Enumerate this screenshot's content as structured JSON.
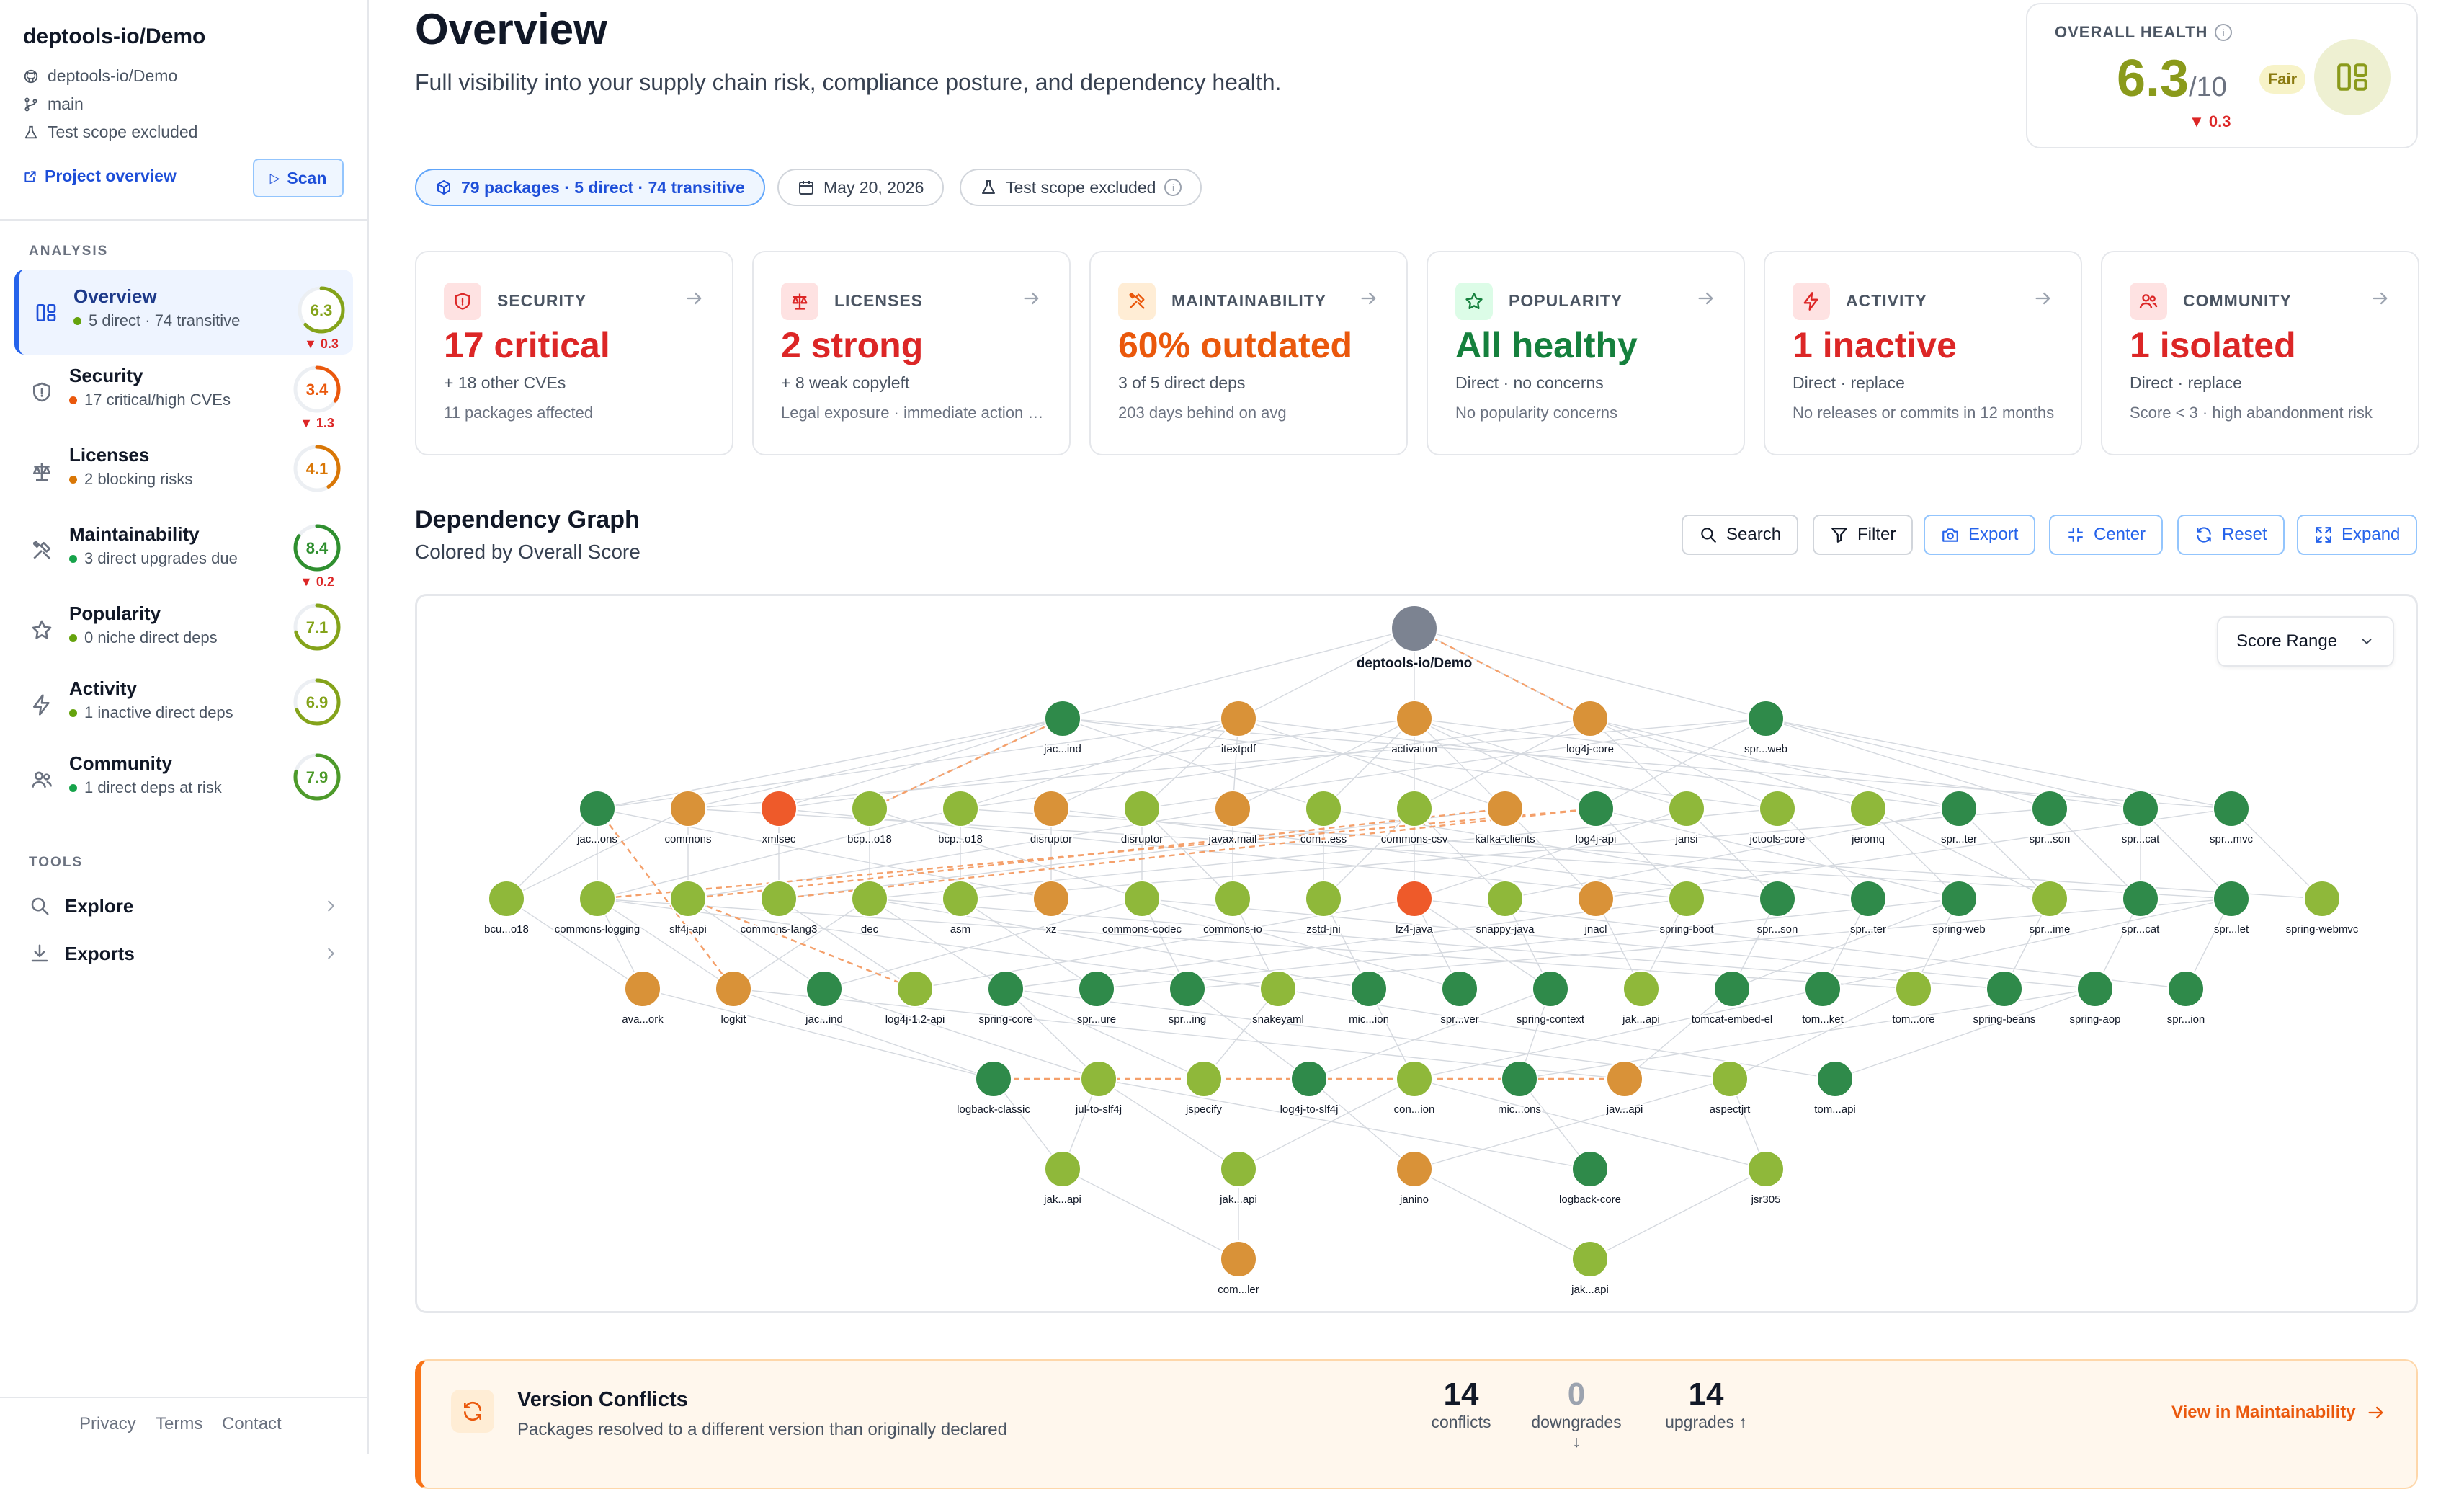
{
  "sidebar": {
    "project_name": "deptools-io/Demo",
    "repo": "deptools-io/Demo",
    "branch": "main",
    "scope": "Test scope excluded",
    "project_link": "Project overview",
    "scan_label": "Scan",
    "analysis_label": "ANALYSIS",
    "tools_label": "TOOLS",
    "items": [
      {
        "title": "Overview",
        "sub": "5 direct · 74 transitive",
        "score": "6.3",
        "score_value": 6.3,
        "delta": "▼ 0.3",
        "dot": "#65a30d",
        "ring": "#84a31a",
        "icon": "dashboard-icon"
      },
      {
        "title": "Security",
        "sub": "17 critical/high CVEs",
        "score": "3.4",
        "score_value": 3.4,
        "delta": "▼ 1.3",
        "dot": "#ea580c",
        "ring": "#ea580c",
        "icon": "shield-icon"
      },
      {
        "title": "Licenses",
        "sub": "2 blocking risks",
        "score": "4.1",
        "score_value": 4.1,
        "delta": "",
        "dot": "#d97706",
        "ring": "#d97706",
        "icon": "scale-icon"
      },
      {
        "title": "Maintainability",
        "sub": "3 direct upgrades due",
        "score": "8.4",
        "score_value": 8.4,
        "delta": "▼ 0.2",
        "dot": "#16a34a",
        "ring": "#2f8f2f",
        "icon": "tools-icon"
      },
      {
        "title": "Popularity",
        "sub": "0 niche direct deps",
        "score": "7.1",
        "score_value": 7.1,
        "delta": "",
        "dot": "#65a30d",
        "ring": "#84a31a",
        "icon": "star-icon"
      },
      {
        "title": "Activity",
        "sub": "1 inactive direct deps",
        "score": "6.9",
        "score_value": 6.9,
        "delta": "",
        "dot": "#65a30d",
        "ring": "#84a31a",
        "icon": "bolt-icon"
      },
      {
        "title": "Community",
        "sub": "1 direct deps at risk",
        "score": "7.9",
        "score_value": 7.9,
        "delta": "",
        "dot": "#16a34a",
        "ring": "#4d9a2a",
        "icon": "users-icon"
      }
    ],
    "tools": [
      {
        "label": "Explore",
        "icon": "search-icon"
      },
      {
        "label": "Exports",
        "icon": "download-icon"
      }
    ],
    "footer": [
      "Privacy",
      "Terms",
      "Contact"
    ]
  },
  "header": {
    "title": "Overview",
    "subtitle": "Full visibility into your supply chain risk, compliance posture, and dependency health."
  },
  "health": {
    "label": "OVERALL HEALTH",
    "score": "6.3",
    "out_of": "/10",
    "badge": "Fair",
    "delta": "▼ 0.3"
  },
  "pills": {
    "packages": "79 packages · 5 direct · 74 transitive",
    "date": "May 20, 2026",
    "scope": "Test scope excluded"
  },
  "metrics": [
    {
      "label": "SECURITY",
      "value": "17 critical",
      "sub": "+ 18 other CVEs",
      "foot": "11 packages affected",
      "color": "#dc2626",
      "icon_bg": "#fee2e2",
      "icon": "shield-icon"
    },
    {
      "label": "LICENSES",
      "value": "2 strong",
      "sub": "+ 8 weak copyleft",
      "foot": "Legal exposure · immediate action required",
      "color": "#dc2626",
      "icon_bg": "#fee2e2",
      "icon": "scale-icon"
    },
    {
      "label": "MAINTAINABILITY",
      "value": "60% outdated",
      "sub": "3 of 5 direct deps",
      "foot": "203 days behind on avg",
      "color": "#ea580c",
      "icon_bg": "#ffedd5",
      "icon": "tools-icon"
    },
    {
      "label": "POPULARITY",
      "value": "All healthy",
      "sub": "Direct · no concerns",
      "foot": "No popularity concerns",
      "color": "#15803d",
      "icon_bg": "#dcfce7",
      "icon": "star-icon"
    },
    {
      "label": "ACTIVITY",
      "value": "1 inactive",
      "sub": "Direct · replace",
      "foot": "No releases or commits in 12 months",
      "color": "#dc2626",
      "icon_bg": "#fee2e2",
      "icon": "bolt-icon"
    },
    {
      "label": "COMMUNITY",
      "value": "1 isolated",
      "sub": "Direct · replace",
      "foot": "Score < 3 · high abandonment risk",
      "color": "#dc2626",
      "icon_bg": "#fee2e2",
      "icon": "users-icon"
    }
  ],
  "graph": {
    "title": "Dependency Graph",
    "subtitle": "Colored by Overall Score",
    "toolbar": [
      {
        "label": "Search",
        "icon": "search-icon",
        "style": "plain"
      },
      {
        "label": "Filter",
        "icon": "filter-icon",
        "style": "plain"
      },
      {
        "label": "Export",
        "icon": "camera-icon",
        "style": "blue"
      },
      {
        "label": "Center",
        "icon": "center-icon",
        "style": "blue"
      },
      {
        "label": "Reset",
        "icon": "refresh-icon",
        "style": "blue"
      },
      {
        "label": "Expand",
        "icon": "expand-icon",
        "style": "blue"
      }
    ],
    "score_range_label": "Score Range",
    "root": {
      "label": "deptools-io/Demo",
      "color": "#7c8391"
    },
    "palette": {
      "dg": "#2f8a4a",
      "g": "#8fb83a",
      "y": "#cfa63a",
      "o": "#d99238",
      "r": "#ee5a2a"
    },
    "rows": [
      [
        [
          "jac...ind",
          "dg"
        ],
        [
          "itextpdf",
          "o"
        ],
        [
          "activation",
          "o"
        ],
        [
          "log4j-core",
          "o"
        ],
        [
          "spr...web",
          "dg"
        ]
      ],
      [
        [
          "jac...ons",
          "dg"
        ],
        [
          "commons",
          "o"
        ],
        [
          "xmlsec",
          "r"
        ],
        [
          "bcp...o18",
          "g"
        ],
        [
          "bcp...o18",
          "g"
        ],
        [
          "disruptor",
          "o"
        ],
        [
          "disruptor",
          "g"
        ],
        [
          "javax.mail",
          "o"
        ],
        [
          "com...ess",
          "g"
        ],
        [
          "commons-csv",
          "g"
        ],
        [
          "kafka-clients",
          "o"
        ],
        [
          "log4j-api",
          "dg"
        ],
        [
          "jansi",
          "g"
        ],
        [
          "jctools-core",
          "g"
        ],
        [
          "jeromq",
          "g"
        ],
        [
          "spr...ter",
          "dg"
        ],
        [
          "spr...son",
          "dg"
        ],
        [
          "spr...cat",
          "dg"
        ],
        [
          "spr...mvc",
          "dg"
        ]
      ],
      [
        [
          "bcu...o18",
          "g"
        ],
        [
          "commons-logging",
          "g"
        ],
        [
          "slf4j-api",
          "g"
        ],
        [
          "commons-lang3",
          "g"
        ],
        [
          "dec",
          "g"
        ],
        [
          "asm",
          "g"
        ],
        [
          "xz",
          "o"
        ],
        [
          "commons-codec",
          "g"
        ],
        [
          "commons-io",
          "g"
        ],
        [
          "zstd-jni",
          "g"
        ],
        [
          "lz4-java",
          "r"
        ],
        [
          "snappy-java",
          "g"
        ],
        [
          "jnacl",
          "o"
        ],
        [
          "spring-boot",
          "g"
        ],
        [
          "spr...son",
          "dg"
        ],
        [
          "spr...ter",
          "dg"
        ],
        [
          "spring-web",
          "dg"
        ],
        [
          "spr...ime",
          "g"
        ],
        [
          "spr...cat",
          "dg"
        ],
        [
          "spr...let",
          "dg"
        ],
        [
          "spring-webmvc",
          "g"
        ]
      ],
      [
        [
          "ava...ork",
          "o"
        ],
        [
          "logkit",
          "o"
        ],
        [
          "jac...ind",
          "dg"
        ],
        [
          "log4j-1.2-api",
          "g"
        ],
        [
          "spring-core",
          "dg"
        ],
        [
          "spr...ure",
          "dg"
        ],
        [
          "spr...ing",
          "dg"
        ],
        [
          "snakeyaml",
          "g"
        ],
        [
          "mic...ion",
          "dg"
        ],
        [
          "spr...ver",
          "dg"
        ],
        [
          "spring-context",
          "dg"
        ],
        [
          "jak...api",
          "g"
        ],
        [
          "tomcat-embed-el",
          "dg"
        ],
        [
          "tom...ket",
          "dg"
        ],
        [
          "tom...ore",
          "g"
        ],
        [
          "spring-beans",
          "dg"
        ],
        [
          "spring-aop",
          "dg"
        ],
        [
          "spr...ion",
          "dg"
        ]
      ],
      [
        [
          "logback-classic",
          "dg"
        ],
        [
          "jul-to-slf4j",
          "g"
        ],
        [
          "jspecify",
          "g"
        ],
        [
          "log4j-to-slf4j",
          "dg"
        ],
        [
          "con...ion",
          "g"
        ],
        [
          "mic...ons",
          "dg"
        ],
        [
          "jav...api",
          "o"
        ],
        [
          "aspectjrt",
          "g"
        ],
        [
          "tom...api",
          "dg"
        ]
      ],
      [
        [
          "jak...api",
          "g"
        ],
        [
          "jak...api",
          "g"
        ],
        [
          "janino",
          "o"
        ],
        [
          "logback-core",
          "dg"
        ],
        [
          "jsr305",
          "g"
        ]
      ],
      [
        [
          "com...ler",
          "o"
        ],
        [
          "jak...api",
          "g"
        ]
      ]
    ]
  },
  "conflicts": {
    "title": "Version Conflicts",
    "subtitle": "Packages resolved to a different version than originally declared",
    "stats": [
      {
        "value": "14",
        "label": "conflicts"
      },
      {
        "value": "0",
        "label": "downgrades ↓"
      },
      {
        "value": "14",
        "label": "upgrades ↑"
      }
    ],
    "link": "View in Maintainability"
  }
}
